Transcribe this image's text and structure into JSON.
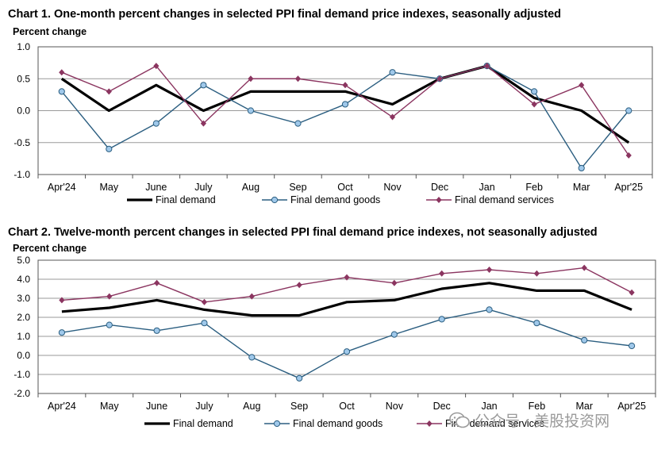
{
  "chart_data": [
    {
      "type": "line",
      "title": "Chart 1. One-month percent changes in selected PPI final demand price indexes, seasonally adjusted",
      "ylabel": "Percent change",
      "ylim": [
        -1.0,
        1.0
      ],
      "yticks": [
        "1.0",
        "0.5",
        "0.0",
        "-0.5",
        "-1.0"
      ],
      "ytick_values": [
        1.0,
        0.5,
        0.0,
        -0.5,
        -1.0
      ],
      "categories": [
        "Apr'24",
        "May",
        "June",
        "July",
        "Aug",
        "Sep",
        "Oct",
        "Nov",
        "Dec",
        "Jan",
        "Feb",
        "Mar",
        "Apr'25"
      ],
      "grid": "horizontal",
      "legend": "bottom",
      "series": [
        {
          "name": "Final demand",
          "color": "#000000",
          "marker": "none",
          "values": [
            0.5,
            0.0,
            0.4,
            0.0,
            0.3,
            0.3,
            0.3,
            0.1,
            0.5,
            0.7,
            0.2,
            0.0,
            -0.5
          ]
        },
        {
          "name": "Final demand goods",
          "color": "#2b5e80",
          "marker": "circle",
          "values": [
            0.3,
            -0.6,
            -0.2,
            0.4,
            0.0,
            -0.2,
            0.1,
            0.6,
            0.5,
            0.7,
            0.3,
            -0.9,
            0.0
          ]
        },
        {
          "name": "Final demand services",
          "color": "#8b3560",
          "marker": "diamond",
          "values": [
            0.6,
            0.3,
            0.7,
            -0.2,
            0.5,
            0.5,
            0.4,
            -0.1,
            0.5,
            0.7,
            0.1,
            0.4,
            -0.7
          ]
        }
      ]
    },
    {
      "type": "line",
      "title": "Chart 2. Twelve-month percent changes in selected PPI final demand price indexes, not seasonally adjusted",
      "ylabel": "Percent change",
      "ylim": [
        -2.0,
        5.0
      ],
      "yticks": [
        "5.0",
        "4.0",
        "3.0",
        "2.0",
        "1.0",
        "0.0",
        "-1.0",
        "-2.0"
      ],
      "ytick_values": [
        5.0,
        4.0,
        3.0,
        2.0,
        1.0,
        0.0,
        -1.0,
        -2.0
      ],
      "categories": [
        "Apr'24",
        "May",
        "June",
        "July",
        "Aug",
        "Sep",
        "Oct",
        "Nov",
        "Dec",
        "Jan",
        "Feb",
        "Mar",
        "Apr'25"
      ],
      "grid": "horizontal",
      "legend": "bottom",
      "series": [
        {
          "name": "Final demand",
          "color": "#000000",
          "marker": "none",
          "values": [
            2.3,
            2.5,
            2.9,
            2.4,
            2.1,
            2.1,
            2.8,
            2.9,
            3.5,
            3.8,
            3.4,
            3.4,
            2.4
          ]
        },
        {
          "name": "Final demand goods",
          "color": "#2b5e80",
          "marker": "circle",
          "values": [
            1.2,
            1.6,
            1.3,
            1.7,
            -0.1,
            -1.2,
            0.2,
            1.1,
            1.9,
            2.4,
            1.7,
            0.8,
            0.5
          ]
        },
        {
          "name": "Final demand services",
          "color": "#8b3560",
          "marker": "diamond",
          "values": [
            2.9,
            3.1,
            3.8,
            2.8,
            3.1,
            3.7,
            4.1,
            3.8,
            4.3,
            4.5,
            4.3,
            4.6,
            3.3
          ]
        }
      ]
    }
  ],
  "watermark": {
    "text": "公众号 · 美股投资网",
    "icon": "wechat-official-account-icon"
  }
}
